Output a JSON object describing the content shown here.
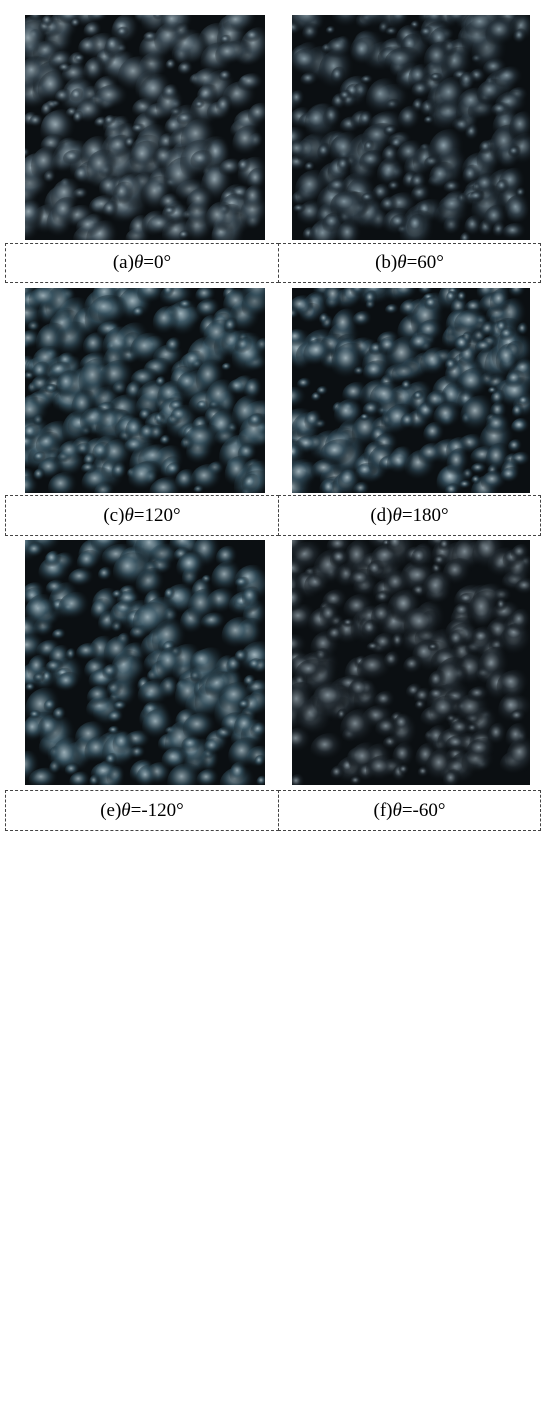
{
  "panels": [
    {
      "label": "(a)",
      "symbol": "θ",
      "value_text": "=0°"
    },
    {
      "label": "(b)",
      "symbol": "θ",
      "value_text": "=60°"
    },
    {
      "label": "(c)",
      "symbol": "θ",
      "value_text": "=120°"
    },
    {
      "label": "(d)",
      "symbol": "θ",
      "value_text": "=180°"
    },
    {
      "label": "(e)",
      "symbol": "θ",
      "value_text": "=-120°"
    },
    {
      "label": "(f)",
      "symbol": "θ",
      "value_text": "=-60°"
    }
  ]
}
